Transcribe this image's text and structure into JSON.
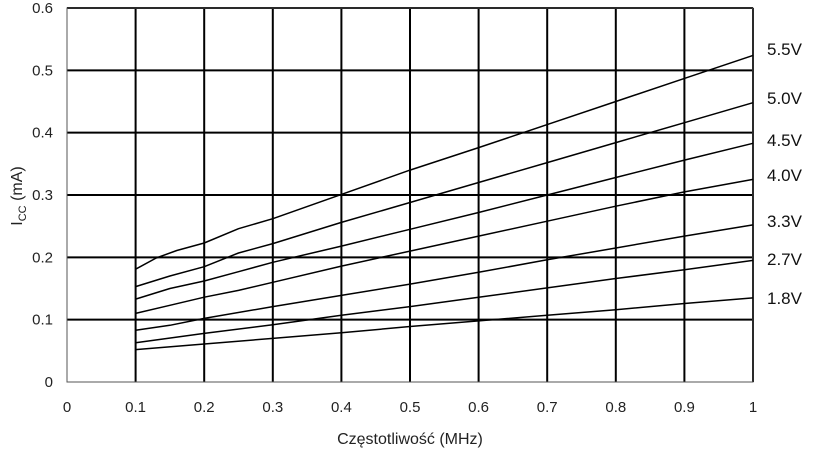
{
  "chart_data": {
    "type": "line",
    "title": "",
    "xlabel": "Częstotliwość (MHz)",
    "ylabel": {
      "main": "I",
      "sub": "CC",
      "unit": " (mA)"
    },
    "xlim": [
      0,
      1
    ],
    "ylim": [
      0,
      0.6
    ],
    "x_ticks": [
      0,
      0.1,
      0.2,
      0.3,
      0.4,
      0.5,
      0.6,
      0.7,
      0.8,
      0.9,
      1
    ],
    "x_tick_labels": [
      "0",
      "0.1",
      "0.2",
      "0.3",
      "0.4",
      "0.5",
      "0.6",
      "0.7",
      "0.8",
      "0.9",
      "1"
    ],
    "y_ticks": [
      0,
      0.1,
      0.2,
      0.3,
      0.4,
      0.5,
      0.6
    ],
    "y_tick_labels": [
      "0",
      "0.1",
      "0.2",
      "0.3",
      "0.4",
      "0.5",
      "0.6"
    ],
    "grid": true,
    "legend": "series labels at right end of lines",
    "series": [
      {
        "name": "5.5V",
        "x": [
          0.1,
          0.13,
          0.16,
          0.2,
          0.25,
          0.3,
          0.4,
          0.5,
          0.6,
          0.7,
          0.8,
          0.9,
          1.0
        ],
        "values": [
          0.181,
          0.199,
          0.211,
          0.223,
          0.246,
          0.262,
          0.301,
          0.34,
          0.376,
          0.413,
          0.45,
          0.487,
          0.524
        ]
      },
      {
        "name": "5.0V",
        "x": [
          0.1,
          0.15,
          0.2,
          0.25,
          0.3,
          0.4,
          0.5,
          0.6,
          0.7,
          0.8,
          0.9,
          1.0
        ],
        "values": [
          0.153,
          0.17,
          0.185,
          0.207,
          0.222,
          0.256,
          0.288,
          0.32,
          0.352,
          0.384,
          0.416,
          0.448
        ]
      },
      {
        "name": "4.5V",
        "x": [
          0.1,
          0.15,
          0.2,
          0.25,
          0.3,
          0.4,
          0.5,
          0.6,
          0.7,
          0.8,
          0.9,
          1.0
        ],
        "values": [
          0.133,
          0.15,
          0.162,
          0.177,
          0.192,
          0.218,
          0.245,
          0.272,
          0.3,
          0.328,
          0.356,
          0.383
        ]
      },
      {
        "name": "4.0V",
        "x": [
          0.1,
          0.15,
          0.2,
          0.25,
          0.3,
          0.4,
          0.5,
          0.6,
          0.7,
          0.8,
          0.9,
          1.0
        ],
        "values": [
          0.11,
          0.123,
          0.136,
          0.147,
          0.16,
          0.186,
          0.21,
          0.234,
          0.258,
          0.282,
          0.305,
          0.325
        ]
      },
      {
        "name": "3.3V",
        "x": [
          0.1,
          0.15,
          0.2,
          0.3,
          0.4,
          0.5,
          0.6,
          0.7,
          0.8,
          0.9,
          1.0
        ],
        "values": [
          0.083,
          0.091,
          0.102,
          0.121,
          0.139,
          0.157,
          0.176,
          0.196,
          0.215,
          0.234,
          0.252
        ]
      },
      {
        "name": "2.7V",
        "x": [
          0.1,
          0.2,
          0.3,
          0.4,
          0.5,
          0.6,
          0.7,
          0.8,
          0.9,
          1.0
        ],
        "values": [
          0.063,
          0.078,
          0.092,
          0.107,
          0.121,
          0.136,
          0.151,
          0.166,
          0.18,
          0.195
        ]
      },
      {
        "name": "1.8V",
        "x": [
          0.1,
          0.2,
          0.3,
          0.4,
          0.5,
          0.6,
          0.7,
          0.8,
          0.9,
          1.0
        ],
        "values": [
          0.052,
          0.061,
          0.07,
          0.079,
          0.089,
          0.098,
          0.107,
          0.116,
          0.126,
          0.135
        ]
      }
    ]
  }
}
